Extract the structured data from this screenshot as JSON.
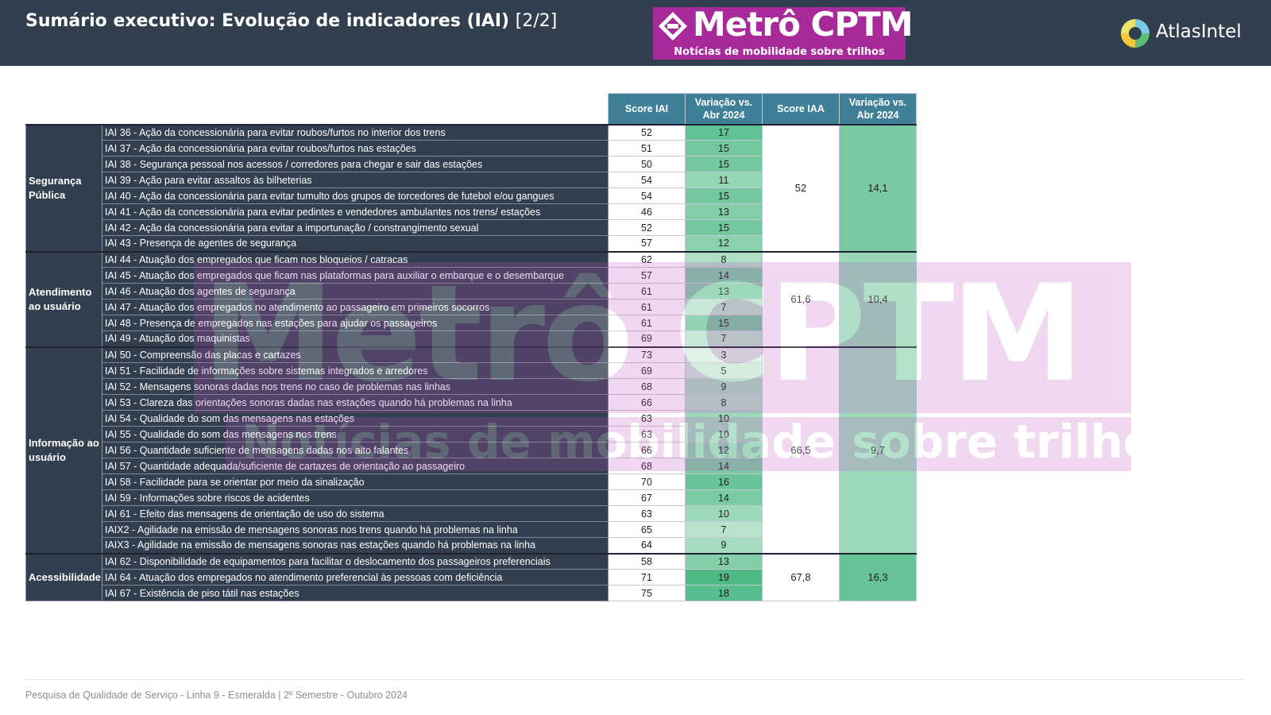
{
  "header": {
    "title": "Sumário executivo: Evolução de indicadores (IAI)",
    "title_suffix": "[2/2]"
  },
  "logo": {
    "name": "Metrô CPTM",
    "tagline": "Notícias de mobilidade sobre trilhos",
    "color": "#a8299a"
  },
  "brand": {
    "name": "AtlasIntel"
  },
  "colors": {
    "header_bg": "#323f4f",
    "column_header_bg": "#3f7f97",
    "variation_scale_low": "#d9efe3",
    "variation_scale_high": "#4fba86"
  },
  "chart_data": {
    "type": "table",
    "columns": [
      "Score IAI",
      "Variação vs. Abr 2024",
      "Score IAA",
      "Variação vs. Abr 2024"
    ],
    "groups": [
      {
        "category": "Segurança Pública",
        "score_iaa": "52",
        "variation_iaa": "14,1",
        "variation_iaa_value": 14.1,
        "rows": [
          {
            "indicator": "IAI 36 - Ação da concessionária para evitar roubos/furtos no interior dos trens",
            "score": 52,
            "variation": 17
          },
          {
            "indicator": "IAI 37 - Ação da concessionária para evitar roubos/furtos nas estações",
            "score": 51,
            "variation": 15
          },
          {
            "indicator": "IAI 38 - Segurança pessoal nos acessos / corredores para chegar e sair das estações",
            "score": 50,
            "variation": 15
          },
          {
            "indicator": "IAI 39 - Ação para evitar assaltos às bilheterias",
            "score": 54,
            "variation": 11
          },
          {
            "indicator": "IAI 40 - Ação da concessionária para evitar tumulto dos grupos de torcedores de futebol e/ou gangues",
            "score": 54,
            "variation": 15
          },
          {
            "indicator": "IAI 41 - Ação da concessionária para evitar pedintes e vendedores ambulantes nos trens/ estações",
            "score": 46,
            "variation": 13
          },
          {
            "indicator": "IAI 42 - Ação da concessionária para evitar a importunação / constrangimento sexual",
            "score": 52,
            "variation": 15
          },
          {
            "indicator": "IAI 43 - Presença de agentes de segurança",
            "score": 57,
            "variation": 12
          }
        ]
      },
      {
        "category": "Atendimento ao usuário",
        "score_iaa": "61,6",
        "variation_iaa": "10,4",
        "variation_iaa_value": 10.4,
        "rows": [
          {
            "indicator": "IAI 44 - Atuação dos empregados que ficam nos bloqueios / catracas",
            "score": 62,
            "variation": 8
          },
          {
            "indicator": "IAI 45 - Atuação dos empregados que ficam nas plataformas para auxiliar o embarque e o desembarque",
            "score": 57,
            "variation": 14
          },
          {
            "indicator": "IAI 46 - Atuação dos agentes de segurança",
            "score": 61,
            "variation": 13
          },
          {
            "indicator": "IAI 47 - Atuação dos empregados no atendimento ao passageiro em primeiros socorros",
            "score": 61,
            "variation": 7
          },
          {
            "indicator": "IAI 48 - Presença de empregados nas estações para ajudar os passageiros",
            "score": 61,
            "variation": 15
          },
          {
            "indicator": "IAI 49 - Atuação dos maquinistas",
            "score": 69,
            "variation": 7
          }
        ]
      },
      {
        "category": "Informação ao usuário",
        "score_iaa": "66,5",
        "variation_iaa": "9,7",
        "variation_iaa_value": 9.7,
        "rows": [
          {
            "indicator": "IAI 50 - Compreensão das placas e cartazes",
            "score": 73,
            "variation": 3
          },
          {
            "indicator": "IAI 51 - Facilidade de informações sobre sistemas integrados e arredores",
            "score": 69,
            "variation": 5
          },
          {
            "indicator": "IAI 52 - Mensagens sonoras dadas nos trens no caso de problemas nas linhas",
            "score": 68,
            "variation": 9
          },
          {
            "indicator": "IAI 53 - Clareza das orientações sonoras dadas nas estações quando há problemas na linha",
            "score": 66,
            "variation": 8
          },
          {
            "indicator": "IAI 54 - Qualidade do som das mensagens nas estações",
            "score": 63,
            "variation": 10
          },
          {
            "indicator": "IAI 55 - Qualidade do som das mensagens nos trens",
            "score": 63,
            "variation": 10
          },
          {
            "indicator": "IAI 56 - Quantidade suficiente de mensagens dadas nos alto falantes",
            "score": 66,
            "variation": 12
          },
          {
            "indicator": "IAI 57 - Quantidade adequada/suficiente de cartazes de orientação ao passageiro",
            "score": 68,
            "variation": 14
          },
          {
            "indicator": "IAI 58 - Facilidade para se orientar por meio da sinalização",
            "score": 70,
            "variation": 16
          },
          {
            "indicator": "IAI 59 - Informações sobre riscos de acidentes",
            "score": 67,
            "variation": 14
          },
          {
            "indicator": "IAI 61 - Efeito das mensagens de orientação de uso do sistema",
            "score": 63,
            "variation": 10
          },
          {
            "indicator": "IAIX2 - Agilidade na emissão de mensagens sonoras nos trens quando há problemas na linha",
            "score": 65,
            "variation": 7
          },
          {
            "indicator": "IAIX3 - Agilidade na emissão de mensagens sonoras nas estações quando há problemas na linha",
            "score": 64,
            "variation": 9
          }
        ]
      },
      {
        "category": "Acessibilidade",
        "score_iaa": "67,8",
        "variation_iaa": "16,3",
        "variation_iaa_value": 16.3,
        "rows": [
          {
            "indicator": "IAI 62 - Disponibilidade de equipamentos para facilitar o deslocamento dos passageiros preferenciais",
            "score": 58,
            "variation": 13
          },
          {
            "indicator": "IAI 64 - Atuação dos empregados no atendimento preferencial às pessoas com deficiência",
            "score": 71,
            "variation": 19
          },
          {
            "indicator": "IAI 67 - Existência de piso tátil nas estações",
            "score": 75,
            "variation": 18
          }
        ]
      }
    ]
  },
  "footer": {
    "text": "Pesquisa de Qualidade de Serviço - Linha 9 - Esmeralda | 2º Semestre - Outubro 2024"
  }
}
